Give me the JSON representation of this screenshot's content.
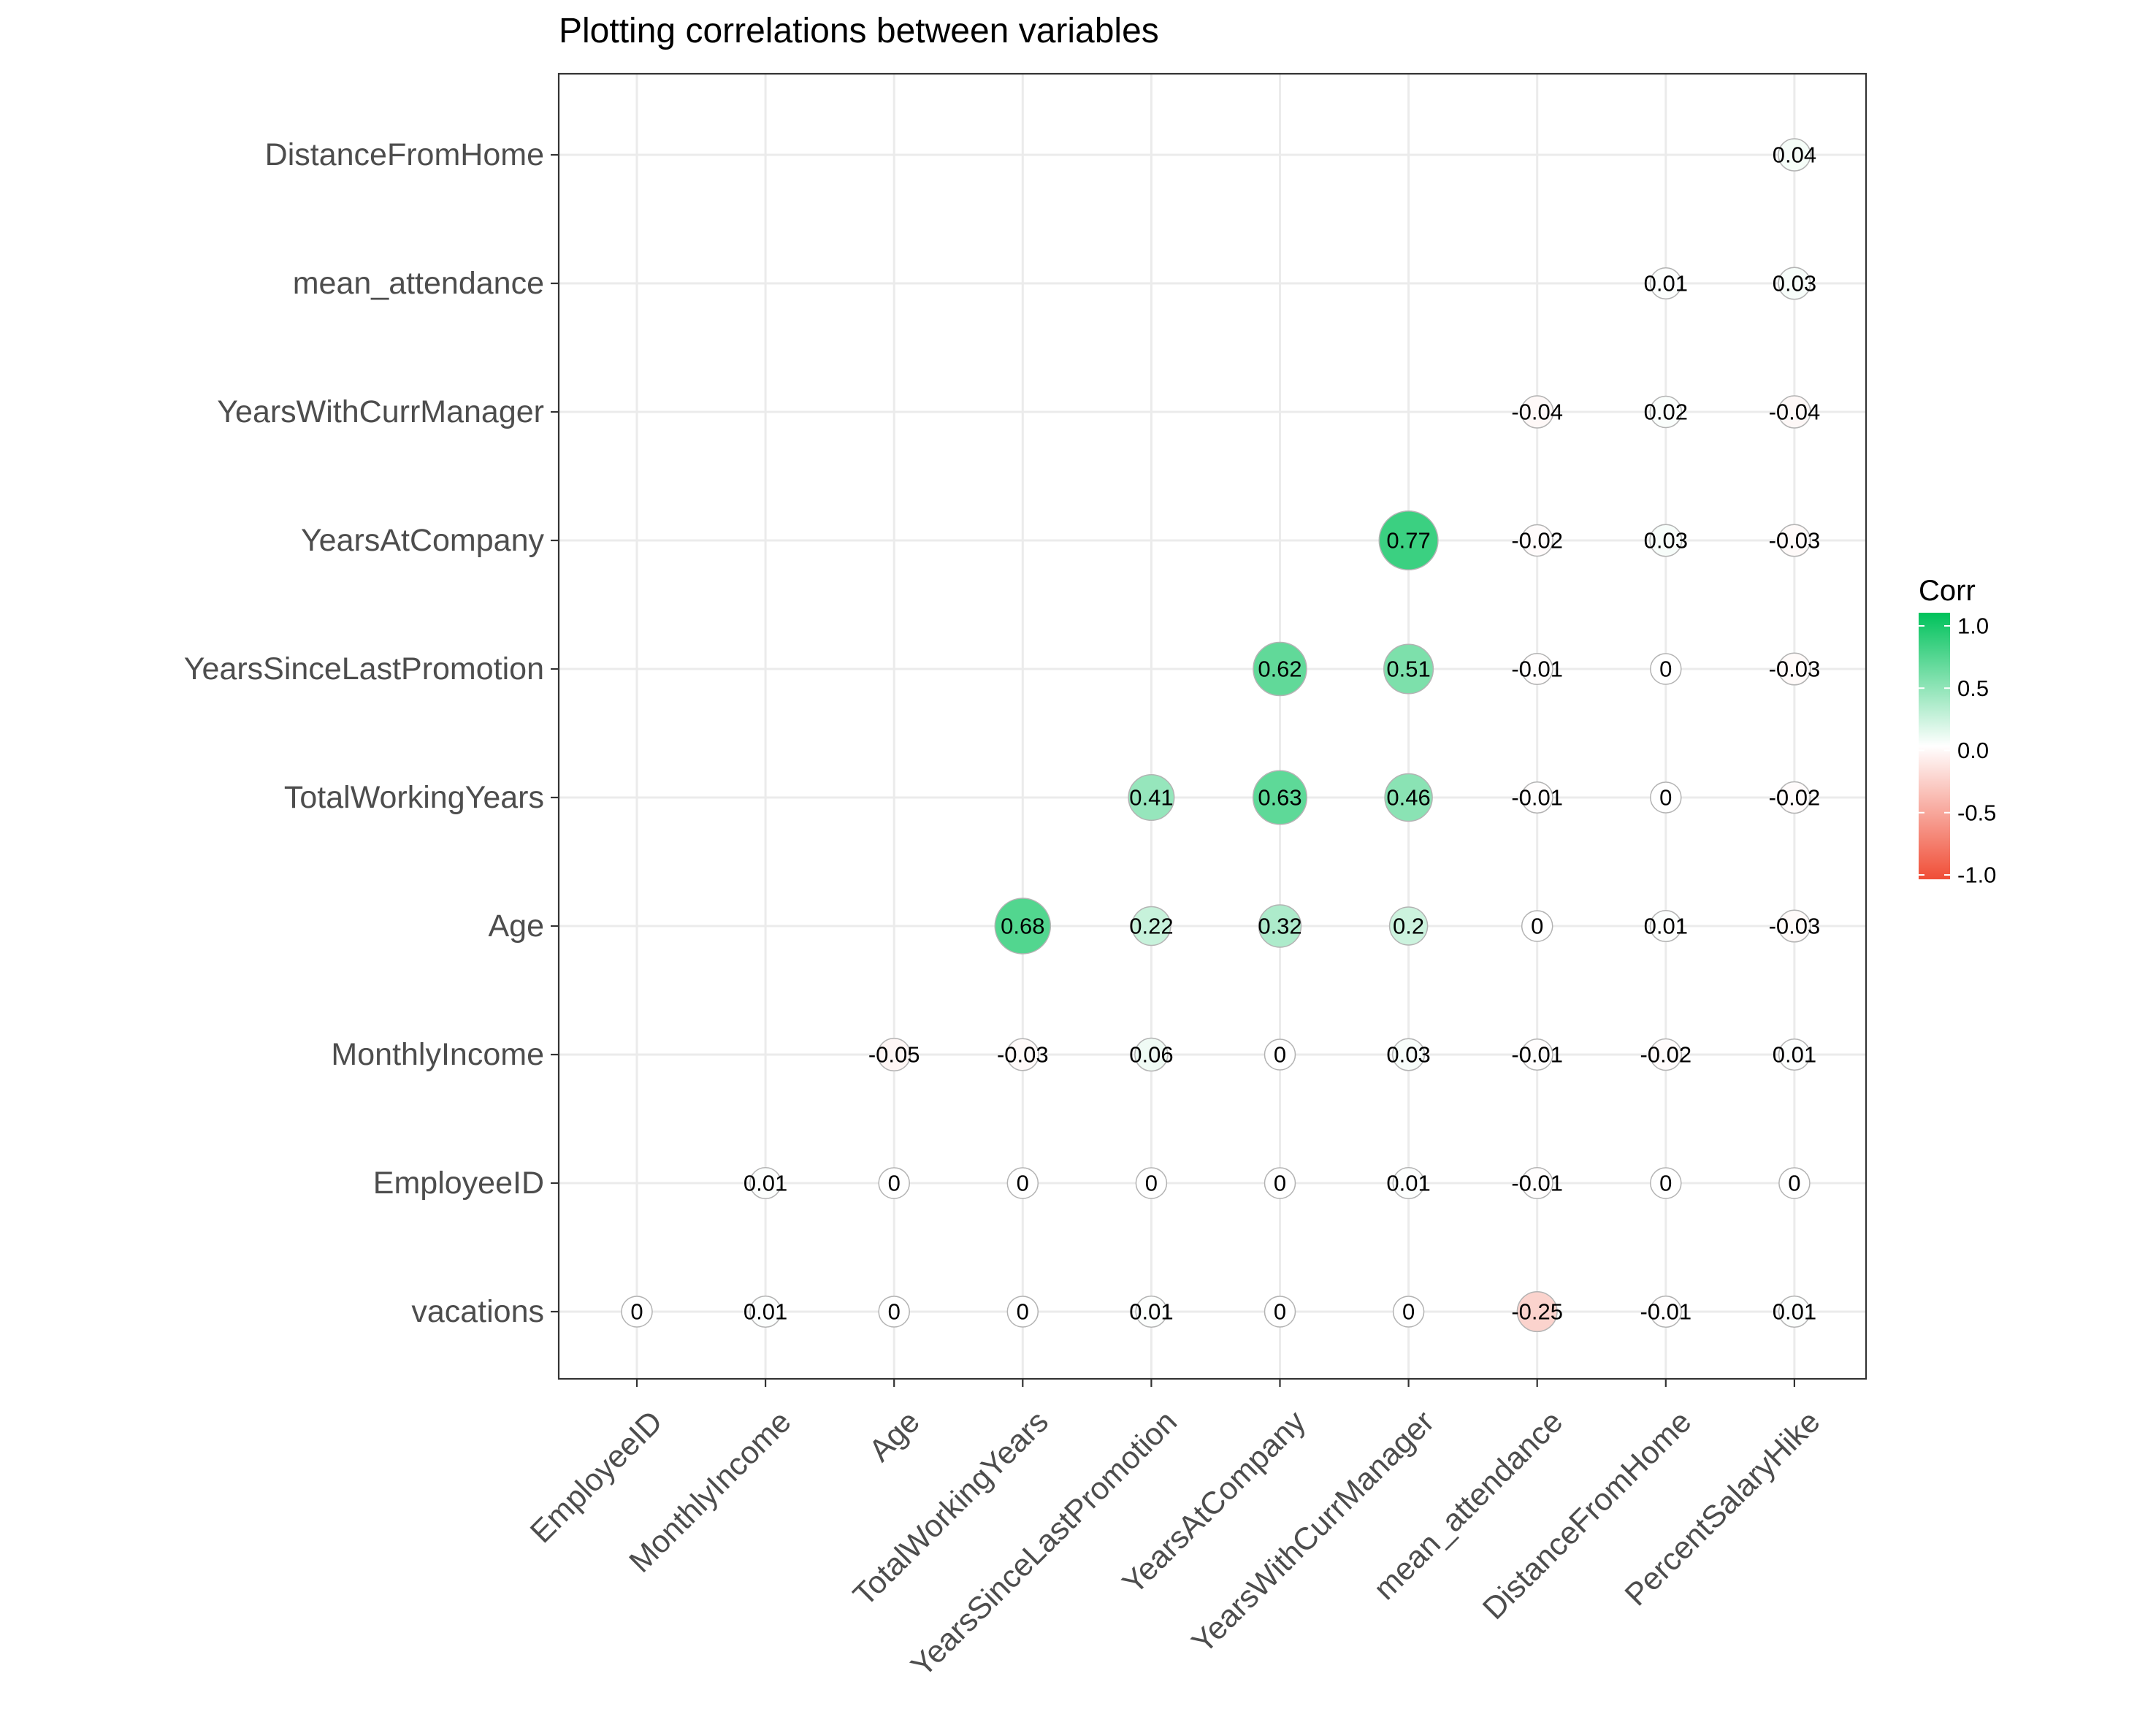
{
  "chart_data": {
    "type": "scatter",
    "title": "Plotting correlations between variables",
    "x_categories": [
      "EmployeeID",
      "MonthlyIncome",
      "Age",
      "TotalWorkingYears",
      "YearsSinceLastPromotion",
      "YearsAtCompany",
      "YearsWithCurrManager",
      "mean_attendance",
      "DistanceFromHome",
      "PercentSalaryHike"
    ],
    "y_categories": [
      "vacations",
      "EmployeeID",
      "MonthlyIncome",
      "Age",
      "TotalWorkingYears",
      "YearsSinceLastPromotion",
      "YearsAtCompany",
      "YearsWithCurrManager",
      "mean_attendance",
      "DistanceFromHome"
    ],
    "points": [
      {
        "x": "PercentSalaryHike",
        "y": "DistanceFromHome",
        "value": 0.04,
        "label": "0.04"
      },
      {
        "x": "DistanceFromHome",
        "y": "mean_attendance",
        "value": 0.01,
        "label": "0.01"
      },
      {
        "x": "PercentSalaryHike",
        "y": "mean_attendance",
        "value": 0.03,
        "label": "0.03"
      },
      {
        "x": "mean_attendance",
        "y": "YearsWithCurrManager",
        "value": -0.04,
        "label": "-0.04"
      },
      {
        "x": "DistanceFromHome",
        "y": "YearsWithCurrManager",
        "value": 0.02,
        "label": "0.02"
      },
      {
        "x": "PercentSalaryHike",
        "y": "YearsWithCurrManager",
        "value": -0.04,
        "label": "-0.04"
      },
      {
        "x": "YearsWithCurrManager",
        "y": "YearsAtCompany",
        "value": 0.77,
        "label": "0.77"
      },
      {
        "x": "mean_attendance",
        "y": "YearsAtCompany",
        "value": -0.02,
        "label": "-0.02"
      },
      {
        "x": "DistanceFromHome",
        "y": "YearsAtCompany",
        "value": 0.03,
        "label": "0.03"
      },
      {
        "x": "PercentSalaryHike",
        "y": "YearsAtCompany",
        "value": -0.03,
        "label": "-0.03"
      },
      {
        "x": "YearsAtCompany",
        "y": "YearsSinceLastPromotion",
        "value": 0.62,
        "label": "0.62"
      },
      {
        "x": "YearsWithCurrManager",
        "y": "YearsSinceLastPromotion",
        "value": 0.51,
        "label": "0.51"
      },
      {
        "x": "mean_attendance",
        "y": "YearsSinceLastPromotion",
        "value": -0.01,
        "label": "-0.01"
      },
      {
        "x": "DistanceFromHome",
        "y": "YearsSinceLastPromotion",
        "value": 0,
        "label": "0"
      },
      {
        "x": "PercentSalaryHike",
        "y": "YearsSinceLastPromotion",
        "value": -0.03,
        "label": "-0.03"
      },
      {
        "x": "YearsSinceLastPromotion",
        "y": "TotalWorkingYears",
        "value": 0.41,
        "label": "0.41"
      },
      {
        "x": "YearsAtCompany",
        "y": "TotalWorkingYears",
        "value": 0.63,
        "label": "0.63"
      },
      {
        "x": "YearsWithCurrManager",
        "y": "TotalWorkingYears",
        "value": 0.46,
        "label": "0.46"
      },
      {
        "x": "mean_attendance",
        "y": "TotalWorkingYears",
        "value": -0.01,
        "label": "-0.01"
      },
      {
        "x": "DistanceFromHome",
        "y": "TotalWorkingYears",
        "value": 0,
        "label": "0"
      },
      {
        "x": "PercentSalaryHike",
        "y": "TotalWorkingYears",
        "value": -0.02,
        "label": "-0.02"
      },
      {
        "x": "TotalWorkingYears",
        "y": "Age",
        "value": 0.68,
        "label": "0.68"
      },
      {
        "x": "YearsSinceLastPromotion",
        "y": "Age",
        "value": 0.22,
        "label": "0.22"
      },
      {
        "x": "YearsAtCompany",
        "y": "Age",
        "value": 0.32,
        "label": "0.32"
      },
      {
        "x": "YearsWithCurrManager",
        "y": "Age",
        "value": 0.2,
        "label": "0.2"
      },
      {
        "x": "mean_attendance",
        "y": "Age",
        "value": 0,
        "label": "0"
      },
      {
        "x": "DistanceFromHome",
        "y": "Age",
        "value": 0.01,
        "label": "0.01"
      },
      {
        "x": "PercentSalaryHike",
        "y": "Age",
        "value": -0.03,
        "label": "-0.03"
      },
      {
        "x": "Age",
        "y": "MonthlyIncome",
        "value": -0.05,
        "label": "-0.05"
      },
      {
        "x": "TotalWorkingYears",
        "y": "MonthlyIncome",
        "value": -0.03,
        "label": "-0.03"
      },
      {
        "x": "YearsSinceLastPromotion",
        "y": "MonthlyIncome",
        "value": 0.06,
        "label": "0.06"
      },
      {
        "x": "YearsAtCompany",
        "y": "MonthlyIncome",
        "value": 0,
        "label": "0"
      },
      {
        "x": "YearsWithCurrManager",
        "y": "MonthlyIncome",
        "value": 0.03,
        "label": "0.03"
      },
      {
        "x": "mean_attendance",
        "y": "MonthlyIncome",
        "value": -0.01,
        "label": "-0.01"
      },
      {
        "x": "DistanceFromHome",
        "y": "MonthlyIncome",
        "value": -0.02,
        "label": "-0.02"
      },
      {
        "x": "PercentSalaryHike",
        "y": "MonthlyIncome",
        "value": 0.01,
        "label": "0.01"
      },
      {
        "x": "MonthlyIncome",
        "y": "EmployeeID",
        "value": 0.01,
        "label": "0.01"
      },
      {
        "x": "Age",
        "y": "EmployeeID",
        "value": 0,
        "label": "0"
      },
      {
        "x": "TotalWorkingYears",
        "y": "EmployeeID",
        "value": 0,
        "label": "0"
      },
      {
        "x": "YearsSinceLastPromotion",
        "y": "EmployeeID",
        "value": 0,
        "label": "0"
      },
      {
        "x": "YearsAtCompany",
        "y": "EmployeeID",
        "value": 0,
        "label": "0"
      },
      {
        "x": "YearsWithCurrManager",
        "y": "EmployeeID",
        "value": 0.01,
        "label": "0.01"
      },
      {
        "x": "mean_attendance",
        "y": "EmployeeID",
        "value": -0.01,
        "label": "-0.01"
      },
      {
        "x": "DistanceFromHome",
        "y": "EmployeeID",
        "value": 0,
        "label": "0"
      },
      {
        "x": "PercentSalaryHike",
        "y": "EmployeeID",
        "value": 0,
        "label": "0"
      },
      {
        "x": "EmployeeID",
        "y": "vacations",
        "value": 0,
        "label": "0"
      },
      {
        "x": "MonthlyIncome",
        "y": "vacations",
        "value": 0.01,
        "label": "0.01"
      },
      {
        "x": "Age",
        "y": "vacations",
        "value": 0,
        "label": "0"
      },
      {
        "x": "TotalWorkingYears",
        "y": "vacations",
        "value": 0,
        "label": "0"
      },
      {
        "x": "YearsSinceLastPromotion",
        "y": "vacations",
        "value": 0.01,
        "label": "0.01"
      },
      {
        "x": "YearsAtCompany",
        "y": "vacations",
        "value": 0,
        "label": "0"
      },
      {
        "x": "YearsWithCurrManager",
        "y": "vacations",
        "value": 0,
        "label": "0"
      },
      {
        "x": "mean_attendance",
        "y": "vacations",
        "value": -0.25,
        "label": "-0.25"
      },
      {
        "x": "DistanceFromHome",
        "y": "vacations",
        "value": -0.01,
        "label": "-0.01"
      },
      {
        "x": "PercentSalaryHike",
        "y": "vacations",
        "value": 0.01,
        "label": "0.01"
      }
    ],
    "legend": {
      "title": "Corr",
      "ticks": [
        "1.0",
        "0.5",
        "0.0",
        "-0.5",
        "-1.0"
      ],
      "tick_values": [
        1.0,
        0.5,
        0.0,
        -0.5,
        -1.0
      ],
      "range": [
        -1,
        1
      ],
      "colors": {
        "high": "#00C25B",
        "mid": "#FFFFFF",
        "low": "#F04E37"
      },
      "placement": "right"
    },
    "grid": true
  }
}
